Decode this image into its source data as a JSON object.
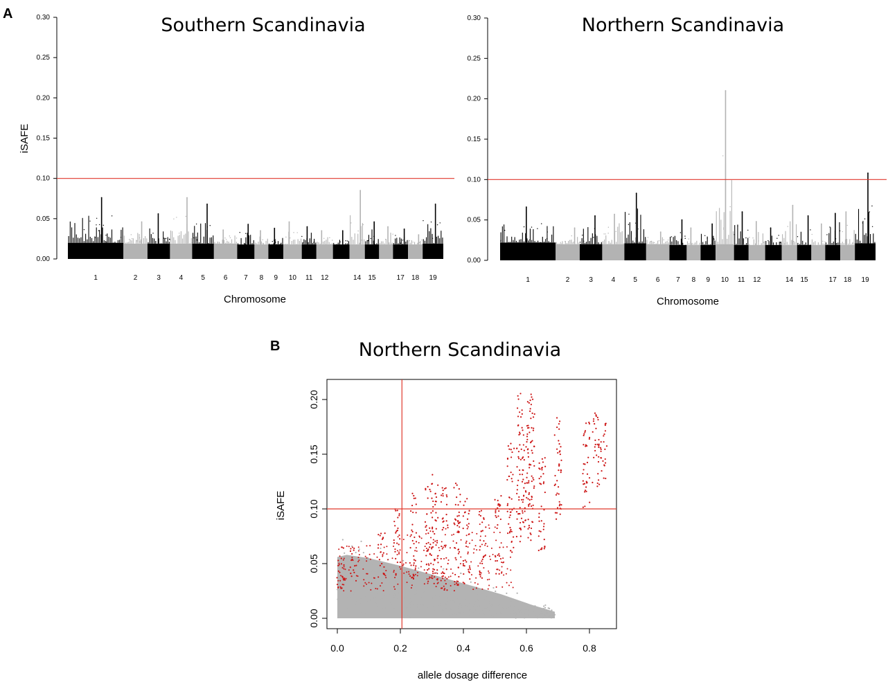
{
  "panels": {
    "a_label": "A",
    "b_label": "B"
  },
  "colors": {
    "dark_points": "#000000",
    "light_points": "#b3b3b3",
    "threshold": "#e0372b",
    "candidate": "#cc1414"
  },
  "chart_data": [
    {
      "id": "south",
      "type": "scatter",
      "title": "Southern Scandinavia",
      "xlabel": "Chromosome",
      "ylabel": "iSAFE",
      "ylim": [
        0,
        0.3
      ],
      "yticks": [
        "0.00",
        "0.05",
        "0.10",
        "0.15",
        "0.20",
        "0.25",
        "0.30"
      ],
      "threshold": 0.1,
      "chromosome_labels": [
        "1",
        "2",
        "3",
        "4",
        "5",
        "6",
        "7",
        "8",
        "9",
        "10",
        "11",
        "12",
        "14",
        "15",
        "17",
        "18",
        "19"
      ],
      "blocks": [
        {
          "chr": 1,
          "start": 0.0,
          "end": 0.148,
          "shade": "dark",
          "base": 0.02,
          "peak": 0.076
        },
        {
          "chr": 2,
          "start": 0.148,
          "end": 0.212,
          "shade": "light",
          "base": 0.019,
          "peak": 0.046
        },
        {
          "chr": 3,
          "start": 0.212,
          "end": 0.272,
          "shade": "dark",
          "base": 0.019,
          "peak": 0.056
        },
        {
          "chr": 4,
          "start": 0.272,
          "end": 0.331,
          "shade": "light",
          "base": 0.019,
          "peak": 0.076
        },
        {
          "chr": 5,
          "start": 0.331,
          "end": 0.389,
          "shade": "dark",
          "base": 0.019,
          "peak": 0.068
        },
        {
          "chr": 6,
          "start": 0.389,
          "end": 0.451,
          "shade": "light",
          "base": 0.019,
          "peak": 0.036
        },
        {
          "chr": 7,
          "start": 0.451,
          "end": 0.497,
          "shade": "dark",
          "base": 0.018,
          "peak": 0.043
        },
        {
          "chr": 8,
          "start": 0.497,
          "end": 0.534,
          "shade": "light",
          "base": 0.018,
          "peak": 0.035
        },
        {
          "chr": 9,
          "start": 0.534,
          "end": 0.574,
          "shade": "dark",
          "base": 0.018,
          "peak": 0.038
        },
        {
          "chr": 10,
          "start": 0.574,
          "end": 0.623,
          "shade": "light",
          "base": 0.018,
          "peak": 0.046
        },
        {
          "chr": 11,
          "start": 0.623,
          "end": 0.662,
          "shade": "dark",
          "base": 0.018,
          "peak": 0.04
        },
        {
          "chr": 12,
          "start": 0.662,
          "end": 0.706,
          "shade": "light",
          "base": 0.018,
          "peak": 0.035
        },
        {
          "chr": 13,
          "start": 0.706,
          "end": 0.75,
          "shade": "dark",
          "base": 0.018,
          "peak": 0.035
        },
        {
          "chr": 14,
          "start": 0.75,
          "end": 0.791,
          "shade": "light",
          "base": 0.018,
          "peak": 0.085
        },
        {
          "chr": 15,
          "start": 0.791,
          "end": 0.829,
          "shade": "dark",
          "base": 0.018,
          "peak": 0.046
        },
        {
          "chr": 16,
          "start": 0.829,
          "end": 0.866,
          "shade": "light",
          "base": 0.018,
          "peak": 0.04
        },
        {
          "chr": 17,
          "start": 0.866,
          "end": 0.906,
          "shade": "dark",
          "base": 0.018,
          "peak": 0.037
        },
        {
          "chr": 18,
          "start": 0.906,
          "end": 0.945,
          "shade": "light",
          "base": 0.018,
          "peak": 0.03
        },
        {
          "chr": 19,
          "start": 0.945,
          "end": 1.0,
          "shade": "dark",
          "base": 0.019,
          "peak": 0.068
        }
      ]
    },
    {
      "id": "north",
      "type": "scatter",
      "title": "Northern Scandinavia",
      "xlabel": "Chromosome",
      "ylabel": "",
      "ylim": [
        0,
        0.3
      ],
      "yticks": [
        "0.00",
        "0.05",
        "0.10",
        "0.15",
        "0.20",
        "0.25",
        "0.30"
      ],
      "threshold": 0.1,
      "chromosome_labels": [
        "1",
        "2",
        "3",
        "4",
        "5",
        "6",
        "7",
        "8",
        "9",
        "10",
        "11",
        "12",
        "14",
        "15",
        "17",
        "18",
        "19"
      ],
      "blocks": [
        {
          "chr": 1,
          "start": 0.0,
          "end": 0.148,
          "shade": "dark",
          "base": 0.022,
          "peak": 0.066
        },
        {
          "chr": 2,
          "start": 0.148,
          "end": 0.212,
          "shade": "light",
          "base": 0.02,
          "peak": 0.04
        },
        {
          "chr": 3,
          "start": 0.212,
          "end": 0.272,
          "shade": "dark",
          "base": 0.02,
          "peak": 0.055
        },
        {
          "chr": 4,
          "start": 0.272,
          "end": 0.331,
          "shade": "light",
          "base": 0.02,
          "peak": 0.057
        },
        {
          "chr": 5,
          "start": 0.331,
          "end": 0.389,
          "shade": "dark",
          "base": 0.021,
          "peak": 0.083
        },
        {
          "chr": 6,
          "start": 0.389,
          "end": 0.451,
          "shade": "light",
          "base": 0.02,
          "peak": 0.035
        },
        {
          "chr": 7,
          "start": 0.451,
          "end": 0.497,
          "shade": "dark",
          "base": 0.019,
          "peak": 0.05
        },
        {
          "chr": 8,
          "start": 0.497,
          "end": 0.534,
          "shade": "light",
          "base": 0.019,
          "peak": 0.04
        },
        {
          "chr": 9,
          "start": 0.534,
          "end": 0.574,
          "shade": "dark",
          "base": 0.019,
          "peak": 0.045
        },
        {
          "chr": 10,
          "start": 0.574,
          "end": 0.623,
          "shade": "light",
          "base": 0.02,
          "peak": 0.21
        },
        {
          "chr": 11,
          "start": 0.623,
          "end": 0.662,
          "shade": "dark",
          "base": 0.019,
          "peak": 0.06
        },
        {
          "chr": 12,
          "start": 0.662,
          "end": 0.706,
          "shade": "light",
          "base": 0.019,
          "peak": 0.048
        },
        {
          "chr": 13,
          "start": 0.706,
          "end": 0.75,
          "shade": "dark",
          "base": 0.019,
          "peak": 0.04
        },
        {
          "chr": 14,
          "start": 0.75,
          "end": 0.791,
          "shade": "light",
          "base": 0.019,
          "peak": 0.068
        },
        {
          "chr": 15,
          "start": 0.791,
          "end": 0.829,
          "shade": "dark",
          "base": 0.019,
          "peak": 0.055
        },
        {
          "chr": 16,
          "start": 0.829,
          "end": 0.866,
          "shade": "light",
          "base": 0.019,
          "peak": 0.045
        },
        {
          "chr": 17,
          "start": 0.866,
          "end": 0.906,
          "shade": "dark",
          "base": 0.019,
          "peak": 0.058
        },
        {
          "chr": 18,
          "start": 0.906,
          "end": 0.945,
          "shade": "light",
          "base": 0.019,
          "peak": 0.06
        },
        {
          "chr": 19,
          "start": 0.945,
          "end": 1.0,
          "shade": "dark",
          "base": 0.021,
          "peak": 0.108
        }
      ]
    },
    {
      "id": "dosage",
      "type": "scatter",
      "title": "Northern Scandinavia",
      "xlabel": "allele dosage difference",
      "ylabel": "iSAFE",
      "xlim": [
        0,
        0.88
      ],
      "ylim": [
        -0.015,
        0.215
      ],
      "xticks": [
        "0.0",
        "0.2",
        "0.4",
        "0.6",
        "0.8"
      ],
      "yticks": [
        "0.00",
        "0.05",
        "0.10",
        "0.15",
        "0.20"
      ],
      "hline": 0.1,
      "vline": 0.205,
      "background_cloud": {
        "x_range": [
          0,
          0.69
        ],
        "y_range": [
          0,
          0.08
        ],
        "color": "light"
      },
      "candidate_columns": [
        {
          "x": 0.01,
          "y_min": 0.025,
          "y_max": 0.07
        },
        {
          "x": 0.05,
          "y_min": 0.03,
          "y_max": 0.065
        },
        {
          "x": 0.14,
          "y_min": 0.035,
          "y_max": 0.082
        },
        {
          "x": 0.19,
          "y_min": 0.035,
          "y_max": 0.1
        },
        {
          "x": 0.24,
          "y_min": 0.035,
          "y_max": 0.118
        },
        {
          "x": 0.29,
          "y_min": 0.03,
          "y_max": 0.125
        },
        {
          "x": 0.31,
          "y_min": 0.03,
          "y_max": 0.134
        },
        {
          "x": 0.34,
          "y_min": 0.025,
          "y_max": 0.12
        },
        {
          "x": 0.38,
          "y_min": 0.03,
          "y_max": 0.126
        },
        {
          "x": 0.41,
          "y_min": 0.03,
          "y_max": 0.11
        },
        {
          "x": 0.46,
          "y_min": 0.035,
          "y_max": 0.101
        },
        {
          "x": 0.51,
          "y_min": 0.04,
          "y_max": 0.112
        },
        {
          "x": 0.55,
          "y_min": 0.06,
          "y_max": 0.16
        },
        {
          "x": 0.58,
          "y_min": 0.07,
          "y_max": 0.21
        },
        {
          "x": 0.6,
          "y_min": 0.08,
          "y_max": 0.18
        },
        {
          "x": 0.615,
          "y_min": 0.07,
          "y_max": 0.205
        },
        {
          "x": 0.65,
          "y_min": 0.06,
          "y_max": 0.15
        },
        {
          "x": 0.7,
          "y_min": 0.09,
          "y_max": 0.19
        },
        {
          "x": 0.79,
          "y_min": 0.1,
          "y_max": 0.18
        },
        {
          "x": 0.82,
          "y_min": 0.12,
          "y_max": 0.19
        },
        {
          "x": 0.845,
          "y_min": 0.125,
          "y_max": 0.18
        }
      ]
    }
  ]
}
